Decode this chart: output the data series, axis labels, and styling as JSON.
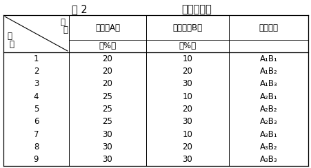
{
  "title_left": "表 2",
  "title_right": "正交试验表",
  "col_headers": [
    "蜂胶（A）",
    "中草药（B）",
    "水平组合"
  ],
  "col_units": [
    "（%）",
    "（%）",
    ""
  ],
  "row_numbers": [
    "1",
    "2",
    "3",
    "4",
    "5",
    "6",
    "7",
    "8",
    "9"
  ],
  "col_a": [
    "20",
    "20",
    "20",
    "25",
    "25",
    "25",
    "30",
    "30",
    "30"
  ],
  "col_b": [
    "10",
    "20",
    "30",
    "10",
    "20",
    "30",
    "10",
    "20",
    "30"
  ],
  "col_c": [
    "A₁B₁",
    "A₁B₂",
    "A₁B₃",
    "A₂B₁",
    "A₂B₂",
    "A₂B₃",
    "A₃B₁",
    "A₃B₂",
    "A₃B₃"
  ],
  "diag_topleft1": "因",
  "diag_topleft2": "素",
  "diag_bottomleft1": "样",
  "diag_bottomleft2": "号",
  "bg_color": "#ffffff",
  "text_color": "#000000",
  "font_size": 8.5,
  "title_font_size": 10.5
}
